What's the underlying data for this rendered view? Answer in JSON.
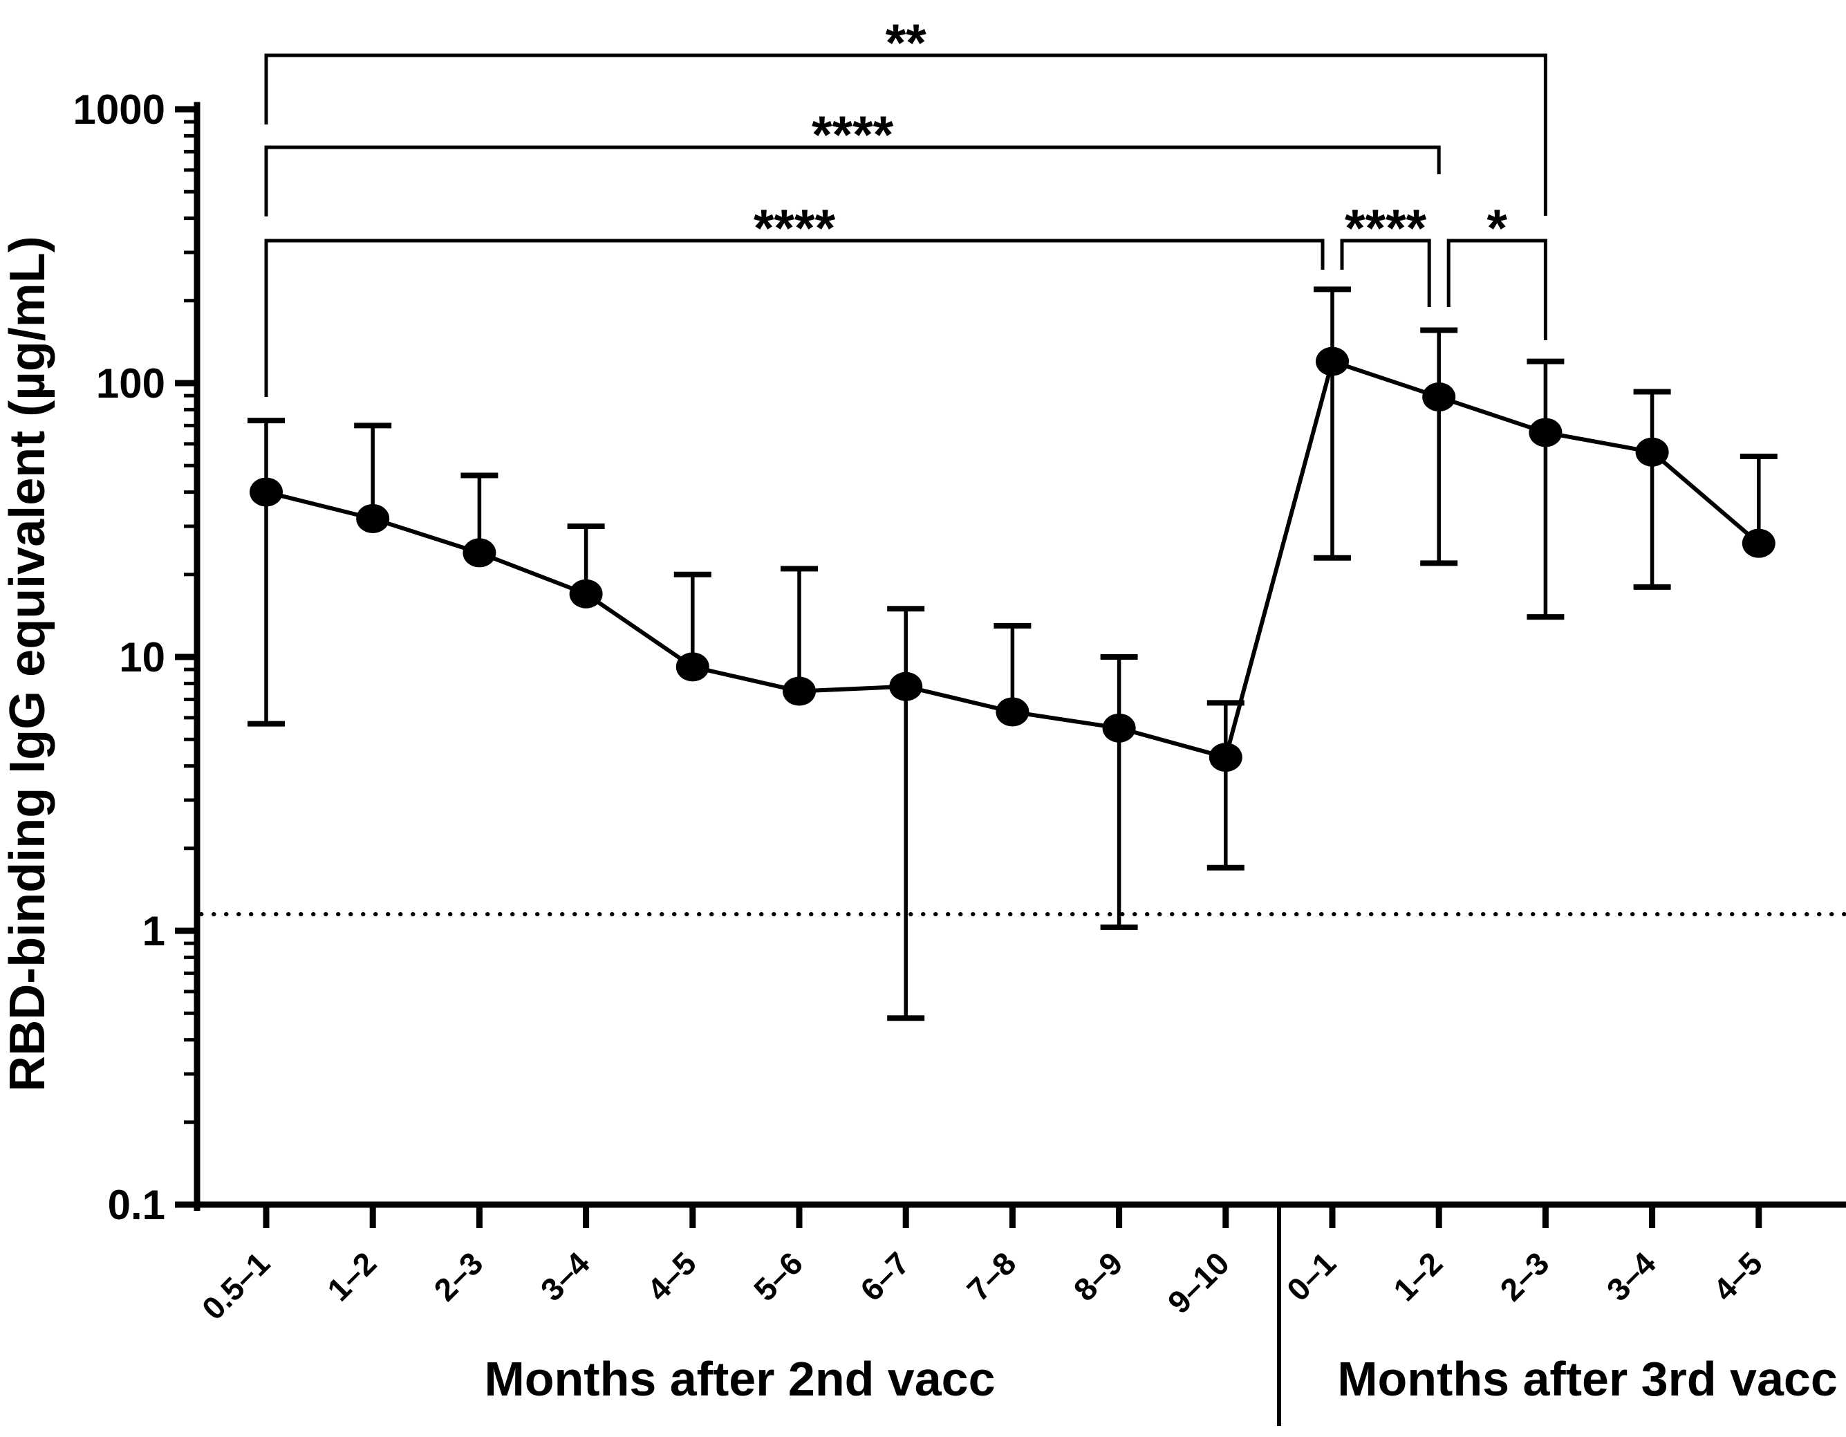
{
  "chart_data": {
    "type": "line",
    "title": "",
    "ylabel": "RBD-binding IgG equivalent (µg/mL)",
    "yscale": "log",
    "ylim": [
      0.1,
      1000
    ],
    "y_ticks": [
      1000,
      100,
      10,
      1,
      0.1
    ],
    "y_tick_labels": [
      "1000",
      "100",
      "10",
      "1",
      "0.1"
    ],
    "grid": false,
    "legend": "none",
    "marker": "filled-circle",
    "colors": {
      "foreground": "#000000",
      "background": "#ffffff"
    },
    "detection_limit": 1.15,
    "groups": [
      {
        "label": "Months after 2nd vacc",
        "categories": [
          "0.5–1",
          "1–2",
          "2–3",
          "3–4",
          "4–5",
          "5–6",
          "6–7",
          "7–8",
          "8–9",
          "9–10"
        ]
      },
      {
        "label": "Months after 3rd vacc",
        "categories": [
          "0–1",
          "1–2",
          "2–3",
          "3–4",
          "4–5"
        ]
      }
    ],
    "series": [
      {
        "name": "RBD-binding IgG equivalent",
        "values": [
          40,
          32,
          24,
          17,
          9.2,
          7.5,
          7.8,
          6.3,
          5.5,
          4.3,
          120,
          89,
          66,
          56,
          26
        ],
        "upper_error": [
          73,
          70,
          46,
          30,
          20,
          21,
          15,
          13,
          10,
          6.8,
          220,
          156,
          120,
          93,
          54
        ],
        "lower_error": [
          5.7,
          null,
          null,
          null,
          null,
          null,
          0.48,
          null,
          1.03,
          1.7,
          23,
          22,
          14,
          18,
          null
        ]
      }
    ],
    "significance": [
      {
        "label": "**",
        "from_index": 0,
        "to_index": 12,
        "compare": [
          "2nd vacc 0.5–1",
          "3rd vacc 2–3"
        ]
      },
      {
        "label": "****",
        "from_index": 0,
        "to_index": 11,
        "compare": [
          "2nd vacc 0.5–1",
          "3rd vacc 1–2"
        ]
      },
      {
        "label": "****",
        "from_index": 0,
        "to_index": 10,
        "compare": [
          "2nd vacc 0.5–1",
          "3rd vacc 0–1"
        ]
      },
      {
        "label": "****",
        "from_index": 10,
        "to_index": 11,
        "compare": [
          "3rd vacc 0–1",
          "3rd vacc 1–2"
        ]
      },
      {
        "label": "*",
        "from_index": 11,
        "to_index": 12,
        "compare": [
          "3rd vacc 1–2",
          "3rd vacc 2–3"
        ]
      }
    ]
  }
}
